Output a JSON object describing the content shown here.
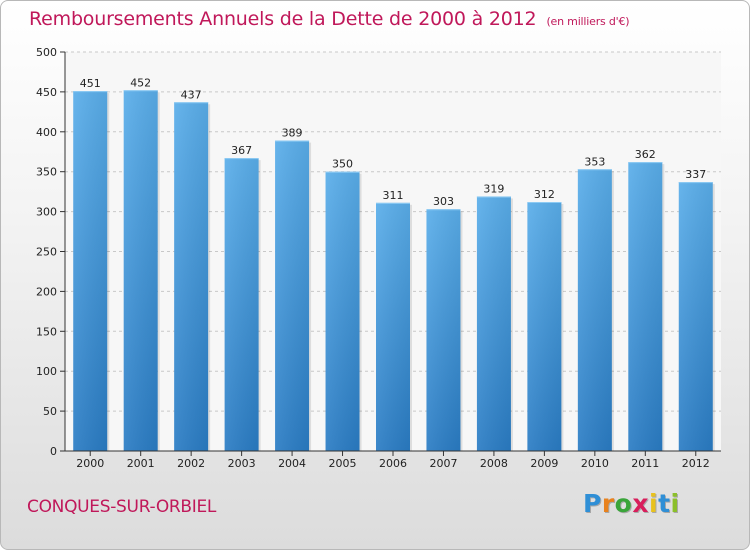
{
  "header": {
    "title": "Remboursements Annuels de la Dette de 2000 à 2012",
    "subtitle": "(en milliers d'€)"
  },
  "footer": {
    "city": "CONQUES-SUR-ORBIEL",
    "logo_letters": [
      "P",
      "r",
      "o",
      "x",
      "i",
      "t",
      "i"
    ],
    "logo_colors": [
      "#2f8fd6",
      "#e8821e",
      "#3aa53a",
      "#d81e5b",
      "#e8c21e",
      "#2f8fd6",
      "#8bbf2a"
    ]
  },
  "colors": {
    "bar_top": "#5aaeea",
    "bar_bottom": "#2a7cc4",
    "grid": "#c8c8c8",
    "axis": "#333333"
  },
  "chart_data": {
    "type": "bar",
    "title": "Remboursements Annuels de la Dette de 2000 à 2012",
    "xlabel": "",
    "ylabel": "",
    "categories": [
      "2000",
      "2001",
      "2002",
      "2003",
      "2004",
      "2005",
      "2006",
      "2007",
      "2008",
      "2009",
      "2010",
      "2011",
      "2012"
    ],
    "values": [
      451,
      452,
      437,
      367,
      389,
      350,
      311,
      303,
      319,
      312,
      353,
      362,
      337
    ],
    "ylim": [
      0,
      500
    ],
    "yticks": [
      0,
      50,
      100,
      150,
      200,
      250,
      300,
      350,
      400,
      450,
      500
    ],
    "grid": true
  }
}
